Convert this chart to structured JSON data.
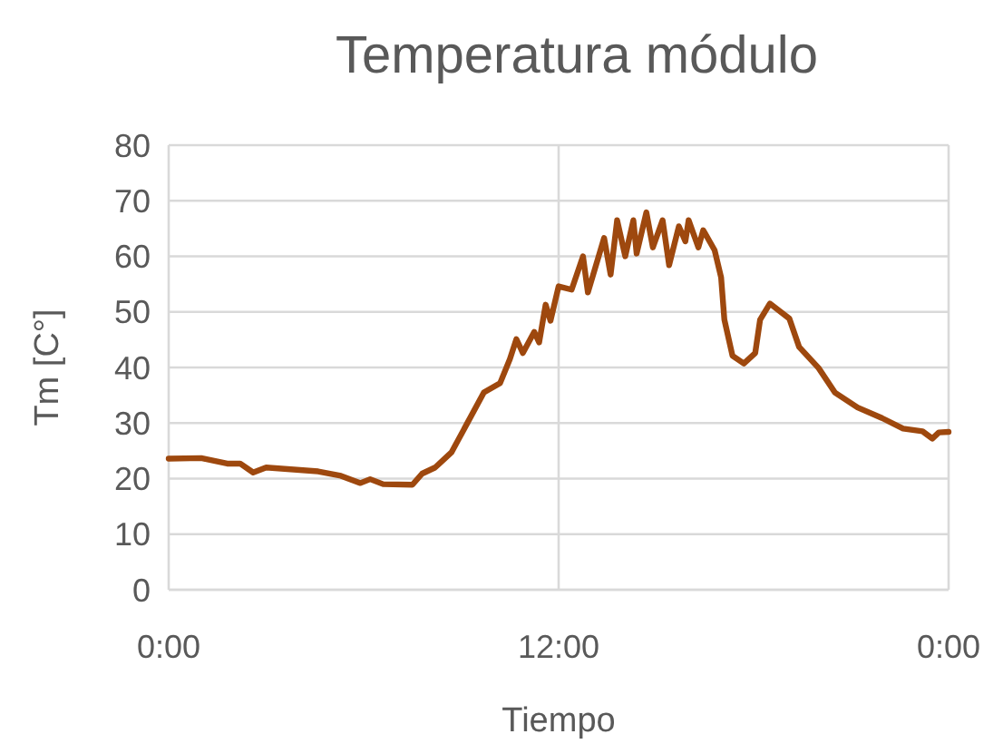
{
  "chart_data": {
    "type": "line",
    "title": "Temperatura módulo",
    "xlabel": "Tiempo",
    "ylabel": "Tm [C°]",
    "x": [
      0,
      1.0,
      1.8,
      2.2,
      2.6,
      3.0,
      4.6,
      5.3,
      5.9,
      6.2,
      6.6,
      7.5,
      7.8,
      8.2,
      8.7,
      9.2,
      9.7,
      10.2,
      10.5,
      10.7,
      10.9,
      11.25,
      11.4,
      11.6,
      11.75,
      12.0,
      12.4,
      12.75,
      12.9,
      13.4,
      13.6,
      13.8,
      14.05,
      14.3,
      14.4,
      14.7,
      14.9,
      15.2,
      15.4,
      15.7,
      15.9,
      16.0,
      16.3,
      16.45,
      16.8,
      17.0,
      17.1,
      17.35,
      17.7,
      18.05,
      18.2,
      18.5,
      19.1,
      19.4,
      20.0,
      20.5,
      21.2,
      21.95,
      22.6,
      23.2,
      23.5,
      23.7,
      24.0
    ],
    "series": [
      {
        "color": "#9e480e",
        "values": [
          23.6,
          23.7,
          22.7,
          22.7,
          21.1,
          22.0,
          21.3,
          20.5,
          19.2,
          19.9,
          19.0,
          18.9,
          20.9,
          22.0,
          24.7,
          30.1,
          35.5,
          37.2,
          41.5,
          45.1,
          42.6,
          46.4,
          44.5,
          51.3,
          48.4,
          54.6,
          54.0,
          60.0,
          53.5,
          63.3,
          56.7,
          66.5,
          60.0,
          66.5,
          60.5,
          67.9,
          61.6,
          66.5,
          58.4,
          65.4,
          62.7,
          66.5,
          61.6,
          64.7,
          61.1,
          56.2,
          48.6,
          42.1,
          40.7,
          42.6,
          48.6,
          51.5,
          48.8,
          43.7,
          39.9,
          35.5,
          32.8,
          30.9,
          29.0,
          28.5,
          27.2,
          28.3,
          28.4
        ]
      }
    ],
    "xlim": [
      0,
      24
    ],
    "xticks": [
      {
        "value": 0,
        "label": "0:00"
      },
      {
        "value": 12,
        "label": "12:00"
      },
      {
        "value": 24,
        "label": "0:00"
      }
    ],
    "ylim": [
      0,
      80
    ],
    "yticks": [
      0,
      10,
      20,
      30,
      40,
      50,
      60,
      70,
      80
    ],
    "grid": true,
    "marker": "none",
    "line_style": "solid"
  }
}
